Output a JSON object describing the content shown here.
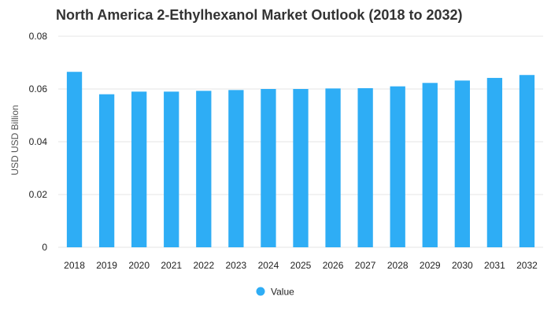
{
  "chart_data": {
    "type": "bar",
    "title": "North America 2-Ethylhexanol Market Outlook (2018 to 2032)",
    "xlabel": "",
    "ylabel": "USD USD Billion",
    "categories": [
      "2018",
      "2019",
      "2020",
      "2021",
      "2022",
      "2023",
      "2024",
      "2025",
      "2026",
      "2027",
      "2028",
      "2029",
      "2030",
      "2031",
      "2032"
    ],
    "series": [
      {
        "name": "Value",
        "color": "#2eadf5",
        "values": [
          0.0665,
          0.058,
          0.059,
          0.059,
          0.0593,
          0.0596,
          0.06,
          0.06,
          0.0602,
          0.0603,
          0.061,
          0.0623,
          0.0632,
          0.0642,
          0.0653
        ]
      }
    ],
    "ylim": [
      0,
      0.08
    ],
    "yticks": [
      "0",
      "0.02",
      "0.04",
      "0.06",
      "0.08"
    ],
    "ytick_values": [
      0,
      0.02,
      0.04,
      0.06,
      0.08
    ],
    "grid": true,
    "legend_position": "bottom-center"
  }
}
